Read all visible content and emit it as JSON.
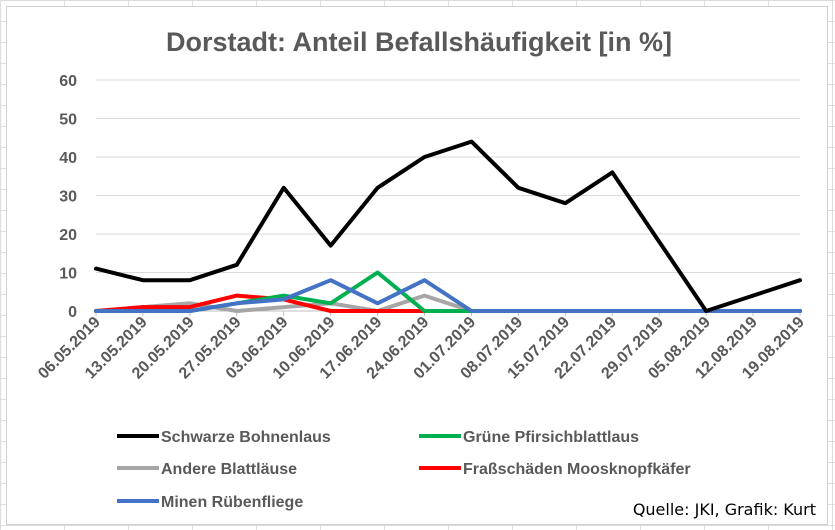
{
  "colors": {
    "text": "#595959",
    "gridline": "#d9d9d9",
    "axis": "#bfbfbf"
  },
  "source_note": "Quelle: JKI, Grafik: Kurt",
  "chart_data": {
    "type": "line",
    "title": "Dorstadt: Anteil Befallshäufigkeit [in %]",
    "xlabel": "",
    "ylabel": "",
    "ylim": [
      0,
      60
    ],
    "yticks": [
      "0",
      "10",
      "20",
      "30",
      "40",
      "50",
      "60"
    ],
    "grid": true,
    "legend_position": "bottom",
    "categories": [
      "06.05.2019",
      "13.05.2019",
      "20.05.2019",
      "27.05.2019",
      "03.06.2019",
      "10.06.2019",
      "17.06.2019",
      "24.06.2019",
      "01.07.2019",
      "08.07.2019",
      "15.07.2019",
      "22.07.2019",
      "29.07.2019",
      "05.08.2019",
      "12.08.2019",
      "19.08.2019"
    ],
    "series": [
      {
        "name": "Schwarze Bohnenlaus",
        "color": "#000000",
        "values": [
          11,
          8,
          8,
          12,
          32,
          17,
          32,
          40,
          44,
          32,
          28,
          36,
          18,
          0,
          4,
          8
        ]
      },
      {
        "name": "Grüne Pfirsichblattlaus",
        "color": "#00b050",
        "values": [
          0,
          0,
          0,
          2,
          4,
          2,
          10,
          0,
          0,
          0,
          0,
          0,
          0,
          0,
          0,
          0
        ]
      },
      {
        "name": "Andere Blattläuse",
        "color": "#a6a6a6",
        "values": [
          0,
          1,
          2,
          0,
          1,
          2,
          0,
          4,
          0,
          0,
          0,
          0,
          0,
          0,
          0,
          0
        ]
      },
      {
        "name": "Fraßschäden Moosknopfkäfer",
        "color": "#ff0000",
        "values": [
          0,
          1,
          1,
          4,
          3,
          0,
          0,
          0,
          0,
          0,
          0,
          0,
          0,
          0,
          0,
          0
        ]
      },
      {
        "name": "Minen Rübenfliege",
        "color": "#4472c4",
        "values": [
          0,
          0,
          0,
          2,
          3,
          8,
          2,
          8,
          0,
          0,
          0,
          0,
          0,
          0,
          0,
          0
        ]
      }
    ]
  }
}
